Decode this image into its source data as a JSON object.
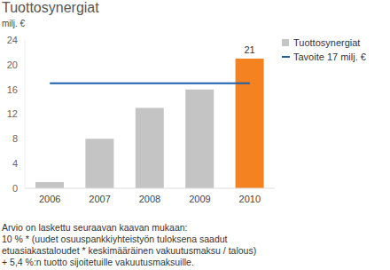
{
  "chart_data": {
    "type": "bar",
    "title": "Tuottosynergiat",
    "subtitle": "milj. €",
    "categories": [
      "2006",
      "2007",
      "2008",
      "2009",
      "2010"
    ],
    "series": [
      {
        "name": "Tuottosynergiat",
        "type": "bar",
        "color": "#c4c4c4",
        "colors": [
          "#c4c4c4",
          "#c4c4c4",
          "#c4c4c4",
          "#c4c4c4",
          "#f58220"
        ],
        "values": [
          1,
          8,
          13,
          16,
          21
        ],
        "value_labels": [
          null,
          null,
          null,
          null,
          "21"
        ]
      },
      {
        "name": "Tavoite 17 milj. €",
        "type": "line",
        "color": "#1f5fa8",
        "values": [
          17,
          17,
          17,
          17,
          17
        ]
      }
    ],
    "ylim": [
      0,
      24
    ],
    "yticks": [
      0,
      4,
      8,
      12,
      16,
      20,
      24
    ],
    "grid": false,
    "legend": "top-right",
    "footnote": [
      "Arvio on laskettu seuraavan kaavan mukaan:",
      "10 % * (uudet osuuspankkiyhteistyön tuloksena saadut",
      "etuasiakastaloudet * keskimääräinen vakuutusmaksu / talous)",
      "+ 5,4 %:n tuotto sijoitetuille vakuutusmaksuille."
    ]
  }
}
